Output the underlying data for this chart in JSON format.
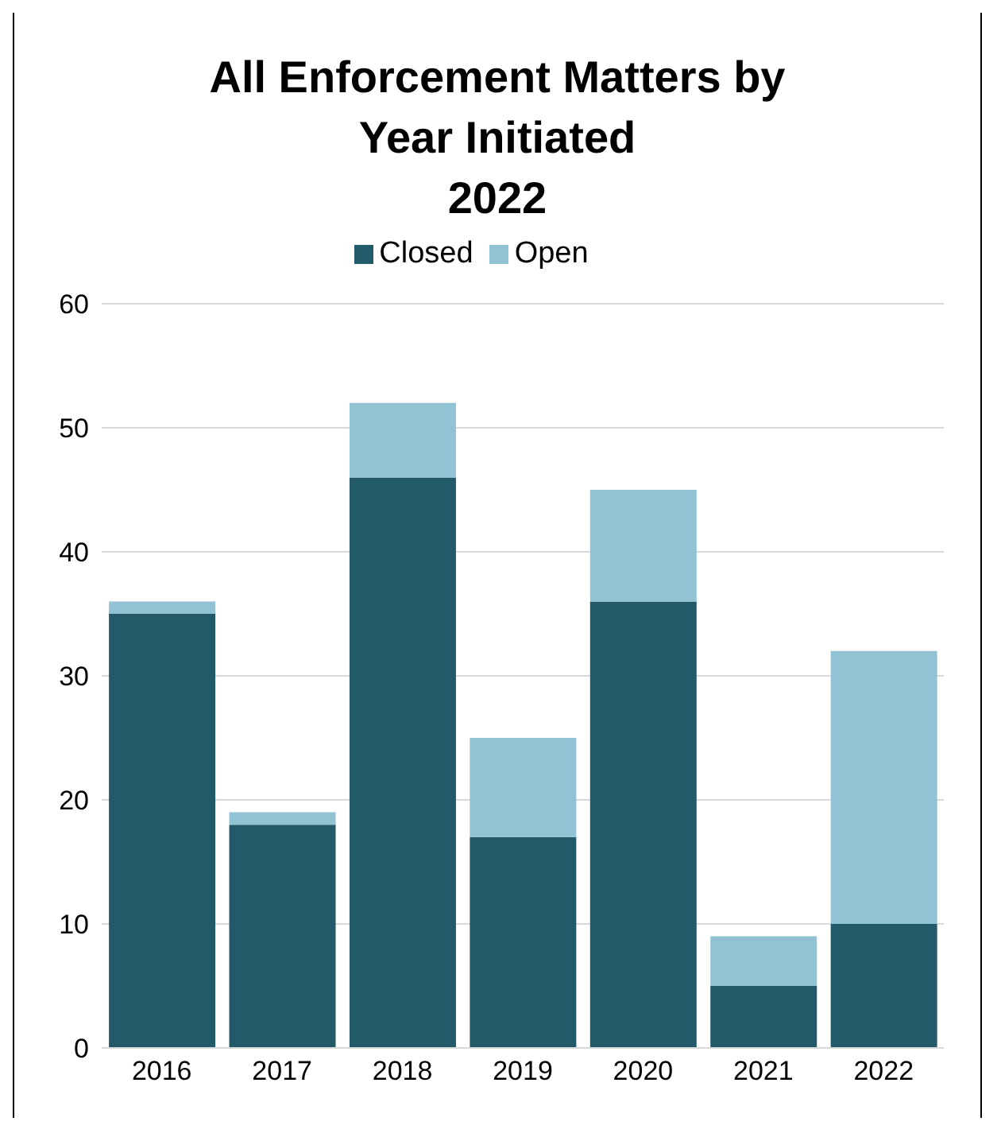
{
  "chart_data": {
    "type": "bar",
    "title": "All Enforcement Matters by\nYear Initiated\n2022",
    "categories": [
      "2016",
      "2017",
      "2018",
      "2019",
      "2020",
      "2021",
      "2022"
    ],
    "stacked": true,
    "series": [
      {
        "name": "Closed",
        "color": "#235a69",
        "values": [
          35,
          18,
          46,
          17,
          36,
          5,
          10
        ]
      },
      {
        "name": "Open",
        "color": "#92c3d4",
        "values": [
          1,
          1,
          6,
          8,
          9,
          4,
          22
        ]
      }
    ],
    "ylim": [
      0,
      60
    ],
    "yticks": [
      0,
      10,
      20,
      30,
      40,
      50,
      60
    ],
    "grid": "y",
    "legend": "top"
  }
}
